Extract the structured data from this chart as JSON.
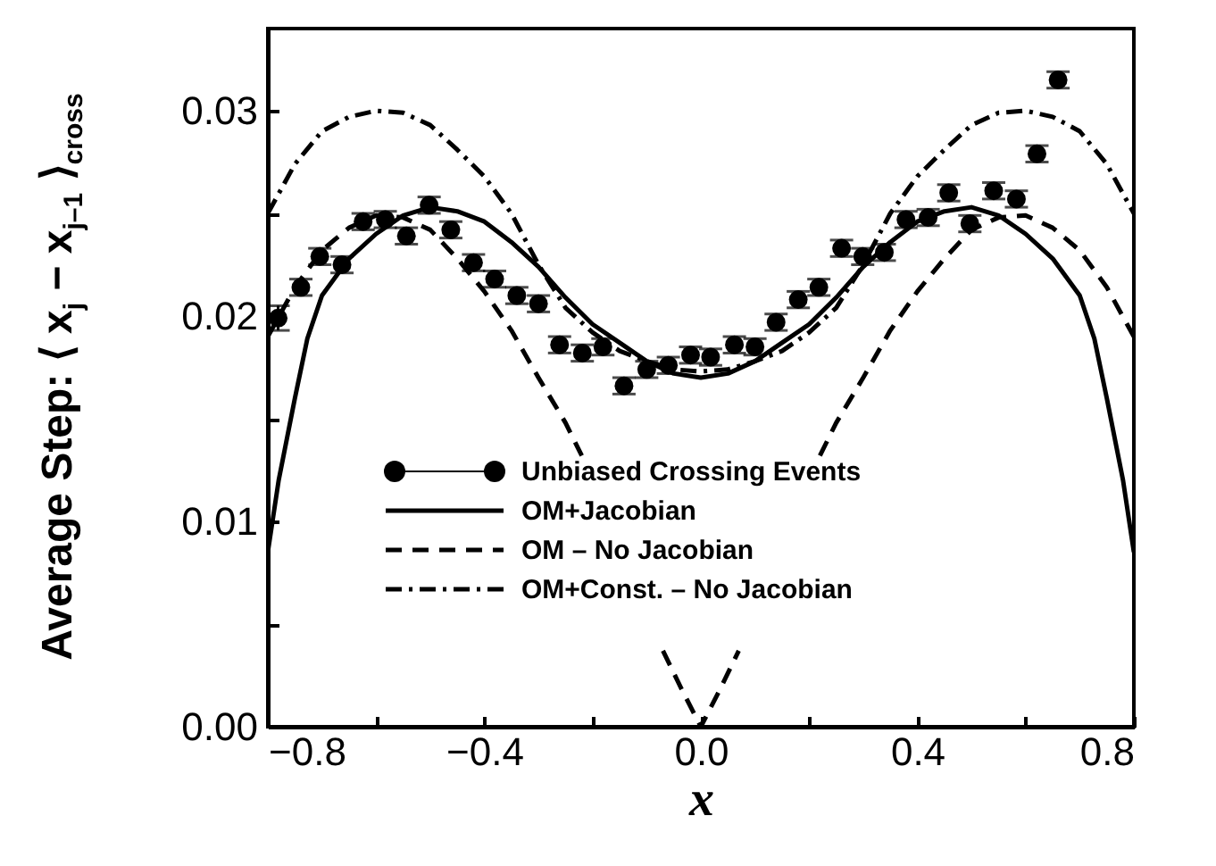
{
  "chart_data": {
    "type": "line",
    "xlabel": "x",
    "ylabel": "Average Step: ⟨ x$_{j}$ − x$_{j–1}$ ⟩$_{cross}$",
    "xlim": [
      -0.8,
      0.8
    ],
    "ylim": [
      0,
      0.034
    ],
    "xticks": [
      {
        "value": -0.8,
        "label": "−0.8"
      },
      {
        "value": -0.6,
        "label": null
      },
      {
        "value": -0.4,
        "label": "−0.4"
      },
      {
        "value": -0.2,
        "label": null
      },
      {
        "value": 0,
        "label": "0.0"
      },
      {
        "value": 0.2,
        "label": null
      },
      {
        "value": 0.4,
        "label": "0.4"
      },
      {
        "value": 0.6,
        "label": null
      },
      {
        "value": 0.8,
        "label": "0.8"
      }
    ],
    "yticks": [
      {
        "value": 0,
        "label": "0.00"
      },
      {
        "value": 0.005,
        "label": null
      },
      {
        "value": 0.01,
        "label": "0.01"
      },
      {
        "value": 0.015,
        "label": null
      },
      {
        "value": 0.02,
        "label": "0.02"
      },
      {
        "value": 0.025,
        "label": null
      },
      {
        "value": 0.03,
        "label": "0.03"
      }
    ],
    "grid": false,
    "legend": "bottom",
    "series": [
      {
        "name": "Unbiased Crossing Events",
        "type": "scatter",
        "marker": "circle",
        "color": "#000000",
        "x": [
          -0.781,
          -0.739,
          -0.704,
          -0.663,
          -0.624,
          -0.583,
          -0.544,
          -0.502,
          -0.462,
          -0.42,
          -0.381,
          -0.34,
          -0.3,
          -0.261,
          -0.219,
          -0.181,
          -0.142,
          -0.1,
          -0.06,
          -0.019,
          0.018,
          0.062,
          0.1,
          0.139,
          0.18,
          0.218,
          0.26,
          0.299,
          0.339,
          0.379,
          0.42,
          0.458,
          0.497,
          0.541,
          0.583,
          0.621,
          0.66
        ],
        "values": [
          0.0199,
          0.0214,
          0.0229,
          0.0225,
          0.0246,
          0.0247,
          0.0239,
          0.0254,
          0.0242,
          0.0226,
          0.0218,
          0.021,
          0.0206,
          0.0186,
          0.0182,
          0.0185,
          0.0166,
          0.0174,
          0.0176,
          0.0181,
          0.018,
          0.0186,
          0.0185,
          0.0197,
          0.0208,
          0.0214,
          0.0233,
          0.0229,
          0.0231,
          0.0247,
          0.0248,
          0.026,
          0.0245,
          0.0261,
          0.0257,
          0.0279,
          0.0315
        ],
        "errors": [
          0.0006,
          0.0004,
          0.0004,
          0.0004,
          0.0004,
          0.0004,
          0.0004,
          0.0004,
          0.0004,
          0.0004,
          0.0004,
          0.0004,
          0.0004,
          0.0004,
          0.0004,
          0.0004,
          0.0004,
          0.0004,
          0.0004,
          0.0004,
          0.0004,
          0.0004,
          0.0004,
          0.0004,
          0.0004,
          0.0004,
          0.0004,
          0.0004,
          0.0004,
          0.0004,
          0.0004,
          0.0004,
          0.0004,
          0.0004,
          0.0004,
          0.0004,
          0.0004
        ]
      },
      {
        "name": "OM+Jacobian",
        "type": "line",
        "line_style": "solid",
        "color": "#000000",
        "x": [
          -0.8,
          -0.78,
          -0.75,
          -0.727,
          -0.7,
          -0.65,
          -0.6,
          -0.55,
          -0.5,
          -0.45,
          -0.4,
          -0.35,
          -0.3,
          -0.25,
          -0.2,
          -0.15,
          -0.1,
          -0.05,
          0,
          0.05,
          0.1,
          0.15,
          0.2,
          0.25,
          0.3,
          0.35,
          0.4,
          0.45,
          0.5,
          0.55,
          0.6,
          0.65,
          0.7,
          0.727,
          0.75,
          0.78,
          0.8
        ],
        "values": [
          0.0085,
          0.012,
          0.016,
          0.0189,
          0.021,
          0.0228,
          0.024,
          0.0249,
          0.0253,
          0.0251,
          0.0246,
          0.0236,
          0.0224,
          0.0209,
          0.0196,
          0.0187,
          0.0178,
          0.0172,
          0.017,
          0.0172,
          0.0178,
          0.0187,
          0.0196,
          0.0209,
          0.0224,
          0.0236,
          0.0246,
          0.0251,
          0.0253,
          0.0249,
          0.024,
          0.0228,
          0.021,
          0.0189,
          0.016,
          0.012,
          0.0085
        ]
      },
      {
        "name": "OM – No Jacobian",
        "type": "line",
        "line_style": "dashed",
        "color": "#000000",
        "x": [
          -0.8,
          -0.75,
          -0.7,
          -0.65,
          -0.6,
          -0.55,
          -0.5,
          -0.45,
          -0.4,
          -0.35,
          -0.3,
          -0.25,
          -0.22,
          -0.15,
          -0.07,
          -0.035,
          0,
          0.035,
          0.07,
          0.15,
          0.22,
          0.25,
          0.3,
          0.35,
          0.4,
          0.45,
          0.5,
          0.55,
          0.6,
          0.65,
          0.7,
          0.75,
          0.8
        ],
        "values": [
          0.019,
          0.0214,
          0.0232,
          0.0243,
          0.0249,
          0.0248,
          0.0242,
          0.0228,
          0.0212,
          0.0193,
          0.017,
          0.0148,
          0.0132,
          null,
          0.0037,
          0.0018,
          0,
          0.0018,
          0.0037,
          null,
          0.0132,
          0.0148,
          0.017,
          0.0193,
          0.0212,
          0.0228,
          0.0242,
          0.0248,
          0.0249,
          0.0243,
          0.0232,
          0.0214,
          0.019
        ]
      },
      {
        "name": "OM+Const. – No Jacobian",
        "type": "line",
        "line_style": "dashdot",
        "color": "#000000",
        "x": [
          -0.8,
          -0.75,
          -0.7,
          -0.65,
          -0.6,
          -0.55,
          -0.5,
          -0.45,
          -0.4,
          -0.35,
          -0.3,
          -0.25,
          -0.2,
          -0.15,
          -0.1,
          -0.05,
          0,
          0.05,
          0.1,
          0.15,
          0.2,
          0.25,
          0.3,
          0.35,
          0.4,
          0.45,
          0.5,
          0.55,
          0.6,
          0.65,
          0.7,
          0.75,
          0.8
        ],
        "values": [
          0.025,
          0.0274,
          0.029,
          0.0297,
          0.03,
          0.0299,
          0.0293,
          0.0281,
          0.0268,
          0.025,
          0.0225,
          0.0204,
          0.0192,
          0.0183,
          0.0178,
          0.0174,
          0.0173,
          0.0174,
          0.0178,
          0.0183,
          0.0192,
          0.0204,
          0.0225,
          0.025,
          0.0268,
          0.0281,
          0.0293,
          0.0299,
          0.03,
          0.0297,
          0.029,
          0.0274,
          0.025
        ]
      }
    ]
  }
}
